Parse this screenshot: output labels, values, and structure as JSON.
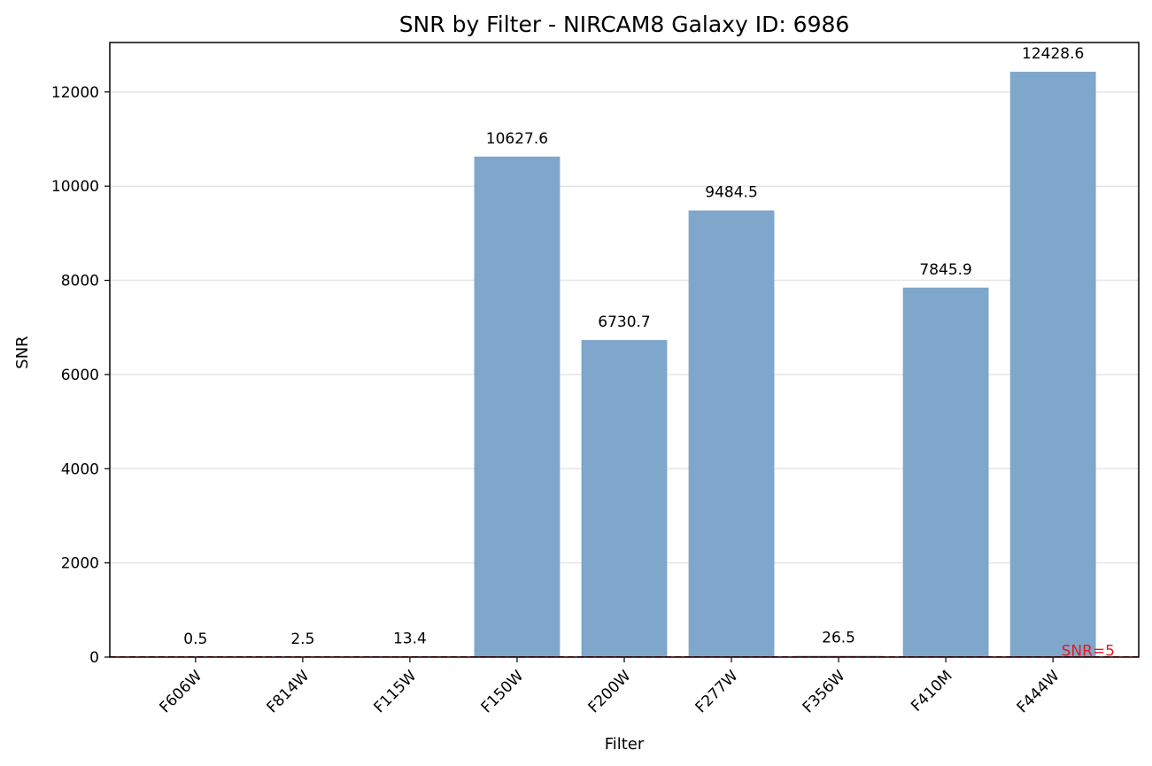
{
  "chart_data": {
    "type": "bar",
    "title": "SNR by Filter - NIRCAM8 Galaxy ID: 6986",
    "xlabel": "Filter",
    "ylabel": "SNR",
    "categories": [
      "F606W",
      "F814W",
      "F115W",
      "F150W",
      "F200W",
      "F277W",
      "F356W",
      "F410M",
      "F444W"
    ],
    "values": [
      0.5,
      2.5,
      13.4,
      10627.6,
      6730.7,
      9484.5,
      26.5,
      7845.9,
      12428.6
    ],
    "value_labels": [
      "0.5",
      "2.5",
      "13.4",
      "10627.6",
      "6730.7",
      "9484.5",
      "26.5",
      "7845.9",
      "12428.6"
    ],
    "ylim": [
      0,
      13050
    ],
    "yticks": [
      0,
      2000,
      4000,
      6000,
      8000,
      10000,
      12000
    ],
    "grid": "y",
    "bar_color": "#7ea7cb",
    "threshold": {
      "value": 5,
      "label": "SNR=5",
      "color": "#e41a1c"
    }
  }
}
